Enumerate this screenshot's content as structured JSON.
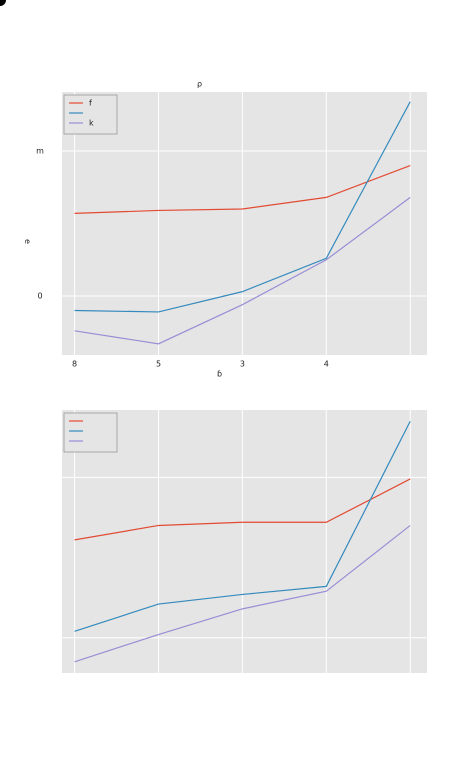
{
  "chart_data": [
    {
      "type": "line",
      "title": "ρ",
      "xlabel": "ɓ",
      "ylabel": "ə",
      "categories": [
        "8",
        "5",
        "3",
        "4",
        null
      ],
      "xlim": [
        -0.15,
        4.2
      ],
      "ylim": [
        -0.407,
        1.407
      ],
      "yticks": [
        0,
        {
          "value": 1,
          "label": "m"
        }
      ],
      "grid": true,
      "legend": "upper left",
      "series": [
        {
          "name": "f",
          "color": "#e24a33",
          "values": [
            0.57,
            0.59,
            0.6,
            0.68,
            0.9
          ]
        },
        {
          "color": "#348abd",
          "values": [
            -0.1,
            -0.11,
            0.03,
            0.26,
            1.34
          ]
        },
        {
          "name": "k",
          "color": "#988ed5",
          "values": [
            -0.24,
            -0.33,
            -0.06,
            0.25,
            0.68
          ]
        }
      ]
    },
    {
      "type": "line",
      "xlim": [
        -0.15,
        4.2
      ],
      "ylim": [
        -0.22,
        1.42
      ],
      "xticks": [
        0,
        1,
        2,
        3,
        4
      ],
      "yticks": [
        0,
        1
      ],
      "tick_labels": false,
      "grid": true,
      "legend": "upper left",
      "series": [
        {
          "color": "#e24a33",
          "values": [
            0.61,
            0.7,
            0.72,
            0.72,
            0.99
          ]
        },
        {
          "color": "#348abd",
          "values": [
            0.04,
            0.21,
            0.27,
            0.32,
            1.35
          ]
        },
        {
          "color": "#988ed5",
          "values": [
            -0.15,
            0.02,
            0.18,
            0.29,
            0.7
          ]
        }
      ]
    }
  ]
}
